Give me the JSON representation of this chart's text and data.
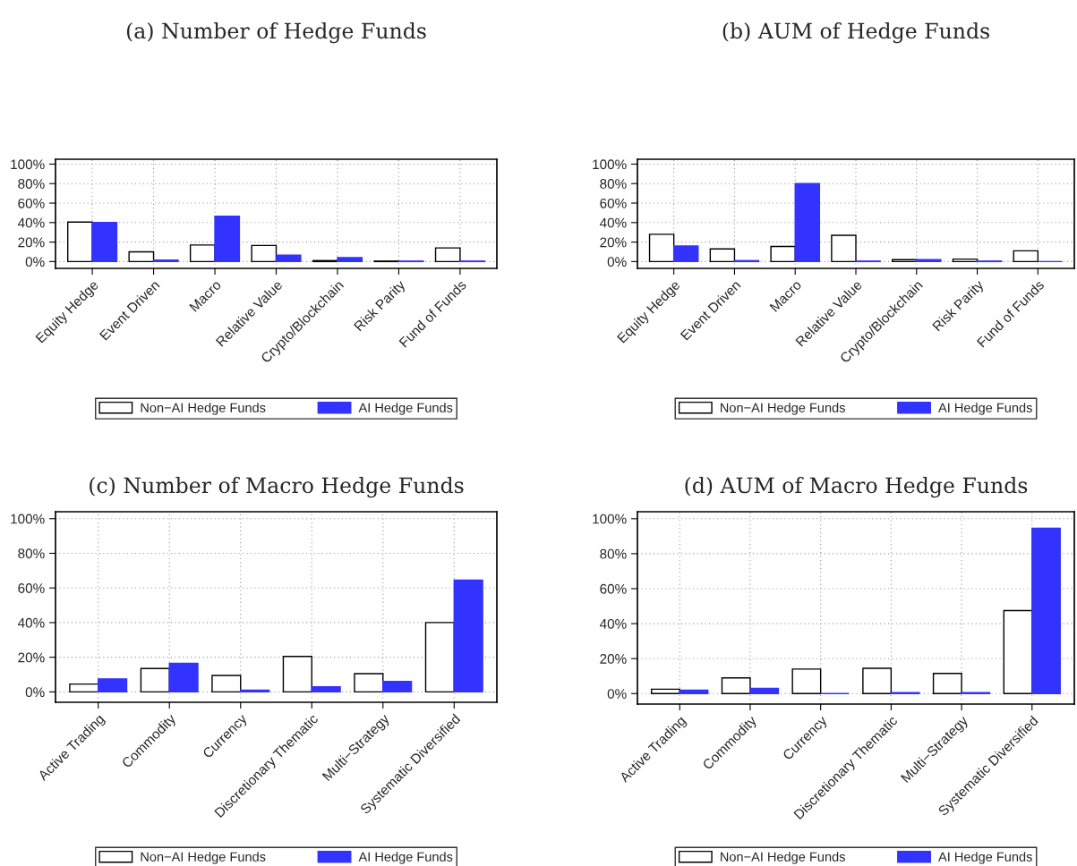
{
  "chart_data": [
    {
      "type": "bar",
      "title": "(a) Number of Hedge Funds",
      "categories": [
        "Equity Hedge",
        "Event Driven",
        "Macro",
        "Relative Value",
        "Crypto/Blockchain",
        "Risk Parity",
        "Fund of Funds"
      ],
      "series": [
        {
          "name": "Non−AI Hedge Funds",
          "color": "#ffffff",
          "values": [
            40.5,
            10,
            17,
            16.5,
            1,
            0.5,
            14
          ]
        },
        {
          "name": "AI Hedge Funds",
          "color": "#3333ff",
          "values": [
            40,
            1.5,
            46.5,
            6.5,
            4,
            0.5,
            0.5
          ]
        }
      ],
      "ylim": [
        -7,
        105
      ],
      "yticks": [
        {
          "value": 0,
          "label": "0%"
        },
        {
          "value": 20,
          "label": "20%"
        },
        {
          "value": 40,
          "label": "40%"
        },
        {
          "value": 60,
          "label": "60%"
        },
        {
          "value": 80,
          "label": "80%"
        },
        {
          "value": 100,
          "label": "100%"
        }
      ],
      "grid": true,
      "legend": "bottom"
    },
    {
      "type": "bar",
      "title": "(b) AUM of Hedge Funds",
      "categories": [
        "Equity Hedge",
        "Event Driven",
        "Macro",
        "Relative Value",
        "Crypto/Blockchain",
        "Risk Parity",
        "Fund of Funds"
      ],
      "series": [
        {
          "name": "Non−AI Hedge Funds",
          "color": "#ffffff",
          "values": [
            28,
            13,
            15.5,
            27,
            2,
            2.5,
            11
          ]
        },
        {
          "name": "AI Hedge Funds",
          "color": "#3333ff",
          "values": [
            16,
            1,
            80,
            0.5,
            2,
            0.5,
            0
          ]
        }
      ],
      "ylim": [
        -7,
        105
      ],
      "yticks": [
        {
          "value": 0,
          "label": "0%"
        },
        {
          "value": 20,
          "label": "20%"
        },
        {
          "value": 40,
          "label": "40%"
        },
        {
          "value": 60,
          "label": "60%"
        },
        {
          "value": 80,
          "label": "80%"
        },
        {
          "value": 100,
          "label": "100%"
        }
      ],
      "grid": true,
      "legend": "bottom"
    },
    {
      "type": "bar",
      "title": "(c) Number of Macro Hedge Funds",
      "categories": [
        "Active Trading",
        "Commodity",
        "Currency",
        "Discretionary Thematic",
        "Multi−Strategy",
        "Systematic Diversified"
      ],
      "series": [
        {
          "name": "Non−AI Hedge Funds",
          "color": "#ffffff",
          "values": [
            4.5,
            13.5,
            9.5,
            20.5,
            10.5,
            40
          ]
        },
        {
          "name": "AI Hedge Funds",
          "color": "#3333ff",
          "values": [
            7.5,
            16.5,
            1,
            3,
            6,
            64.5
          ]
        }
      ],
      "ylim": [
        -6,
        104
      ],
      "yticks": [
        {
          "value": 0,
          "label": "0%"
        },
        {
          "value": 20,
          "label": "20%"
        },
        {
          "value": 40,
          "label": "40%"
        },
        {
          "value": 60,
          "label": "60%"
        },
        {
          "value": 80,
          "label": "80%"
        },
        {
          "value": 100,
          "label": "100%"
        }
      ],
      "grid": true,
      "legend": "bottom"
    },
    {
      "type": "bar",
      "title": "(d) AUM of Macro Hedge Funds",
      "categories": [
        "Active Trading",
        "Commodity",
        "Currency",
        "Discretionary Thematic",
        "Multi−Strategy",
        "Systematic Diversified"
      ],
      "series": [
        {
          "name": "Non−AI Hedge Funds",
          "color": "#ffffff",
          "values": [
            2.5,
            9,
            14,
            14.5,
            11.5,
            47.5
          ]
        },
        {
          "name": "AI Hedge Funds",
          "color": "#3333ff",
          "values": [
            2,
            3,
            0,
            0.5,
            0.5,
            94.5
          ]
        }
      ],
      "ylim": [
        -6,
        104
      ],
      "yticks": [
        {
          "value": 0,
          "label": "0%"
        },
        {
          "value": 20,
          "label": "20%"
        },
        {
          "value": 40,
          "label": "40%"
        },
        {
          "value": 60,
          "label": "60%"
        },
        {
          "value": 80,
          "label": "80%"
        },
        {
          "value": 100,
          "label": "100%"
        }
      ],
      "grid": true,
      "legend": "bottom"
    }
  ]
}
